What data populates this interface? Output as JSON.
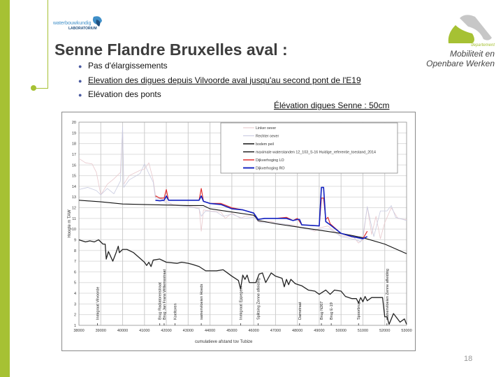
{
  "header": {
    "logo_left_text": "waterbouwkundig",
    "logo_left_subtext": "LABORATORIUM",
    "logo_right_dept": "departement",
    "logo_right_line1": "Mobiliteit en",
    "logo_right_line2": "Openbare Werken"
  },
  "slide": {
    "title": "Senne Flandre Bruxelles aval :",
    "bullets": [
      {
        "text": "Pas d'élargissements",
        "underline": false
      },
      {
        "text": "Elevation des digues depuis Vilvoorde aval  jusqu'au second pont de l'E19",
        "underline": true
      },
      {
        "text": "Elévation des ponts",
        "underline": false
      }
    ],
    "subtitle": "Élévation digues Senne : 50cm",
    "page_number": "18"
  },
  "colors": {
    "accent_green": "#a6c133",
    "title": "#3d3d3d"
  },
  "chart_data": {
    "type": "line",
    "title": "",
    "xlabel": "cumulatieve  afstand tov Tubize",
    "ylabel": "Hoogte m TAW",
    "xlim": [
      38000,
      53000
    ],
    "ylim": [
      1,
      20
    ],
    "xticks": [
      38000,
      39000,
      40000,
      41000,
      42000,
      43000,
      44000,
      45000,
      46000,
      47000,
      48000,
      49000,
      50000,
      51000,
      52000,
      53000
    ],
    "yticks": [
      1,
      2,
      3,
      4,
      5,
      6,
      7,
      8,
      9,
      10,
      11,
      12,
      13,
      14,
      15,
      16,
      17,
      18,
      19,
      20
    ],
    "grid": true,
    "legend_placement": "top-right",
    "series": [
      {
        "name": "Linker oever",
        "color": "#e8c8cc",
        "points": [
          [
            38000,
            16.6
          ],
          [
            38300,
            16.2
          ],
          [
            38600,
            16.1
          ],
          [
            38800,
            15.3
          ],
          [
            39000,
            13.2
          ],
          [
            39300,
            14.2
          ],
          [
            39600,
            14.7
          ],
          [
            39900,
            15.3
          ],
          [
            40000,
            19.5
          ],
          [
            40050,
            14.2
          ],
          [
            40300,
            15.0
          ],
          [
            40800,
            15.5
          ],
          [
            41000,
            15.6
          ],
          [
            41200,
            16.2
          ],
          [
            41400,
            14.6
          ],
          [
            41500,
            13.2
          ],
          [
            41700,
            12.9
          ],
          [
            42000,
            12.6
          ],
          [
            42300,
            12.3
          ],
          [
            42800,
            12.2
          ],
          [
            43200,
            12.1
          ],
          [
            43500,
            12.0
          ],
          [
            43600,
            9.8
          ],
          [
            43700,
            11.8
          ],
          [
            44000,
            11.7
          ],
          [
            44500,
            11.6
          ],
          [
            44700,
            11.0
          ],
          [
            45000,
            11.5
          ],
          [
            45400,
            11.0
          ],
          [
            45600,
            11.2
          ],
          [
            46000,
            11.3
          ],
          [
            46200,
            10.7
          ],
          [
            46800,
            10.7
          ],
          [
            47200,
            10.5
          ],
          [
            47800,
            10.4
          ],
          [
            48100,
            10.2
          ],
          [
            48500,
            10.0
          ],
          [
            48800,
            9.8
          ],
          [
            49000,
            10.1
          ],
          [
            49400,
            10.3
          ],
          [
            49700,
            9.8
          ],
          [
            50000,
            9.4
          ],
          [
            50600,
            9.2
          ],
          [
            50800,
            8.7
          ],
          [
            51000,
            9.0
          ],
          [
            51200,
            12.1
          ],
          [
            51400,
            9.5
          ],
          [
            51600,
            11.2
          ],
          [
            51800,
            9.1
          ],
          [
            52000,
            10.6
          ],
          [
            52300,
            12.0
          ],
          [
            52600,
            11.0
          ],
          [
            52900,
            10.9
          ],
          [
            53000,
            10.9
          ]
        ]
      },
      {
        "name": "Rechter oever",
        "color": "#c8cbe0",
        "points": [
          [
            38000,
            13.7
          ],
          [
            38400,
            13.9
          ],
          [
            38800,
            13.6
          ],
          [
            39000,
            13.2
          ],
          [
            39300,
            13.8
          ],
          [
            39600,
            13.3
          ],
          [
            39900,
            14.5
          ],
          [
            40000,
            19.6
          ],
          [
            40050,
            13.9
          ],
          [
            40300,
            14.6
          ],
          [
            40800,
            15.2
          ],
          [
            41000,
            16.1
          ],
          [
            41200,
            15.2
          ],
          [
            41400,
            14.4
          ],
          [
            41500,
            12.9
          ],
          [
            41800,
            12.8
          ],
          [
            42000,
            12.4
          ],
          [
            42500,
            12.2
          ],
          [
            43000,
            12.1
          ],
          [
            43500,
            11.9
          ],
          [
            43600,
            11.2
          ],
          [
            43800,
            11.7
          ],
          [
            44300,
            11.6
          ],
          [
            44600,
            11.2
          ],
          [
            45000,
            11.4
          ],
          [
            45500,
            11.0
          ],
          [
            46000,
            11.1
          ],
          [
            46300,
            10.6
          ],
          [
            47000,
            10.6
          ],
          [
            47600,
            10.4
          ],
          [
            48200,
            10.1
          ],
          [
            48700,
            9.9
          ],
          [
            49000,
            10.0
          ],
          [
            49500,
            10.0
          ],
          [
            50000,
            9.3
          ],
          [
            50700,
            9.0
          ],
          [
            50900,
            8.8
          ],
          [
            51000,
            9.3
          ],
          [
            51200,
            12.1
          ],
          [
            51500,
            9.3
          ],
          [
            51800,
            11.7
          ],
          [
            52100,
            11.7
          ],
          [
            52300,
            12.2
          ],
          [
            52500,
            11.1
          ],
          [
            53000,
            10.8
          ]
        ]
      },
      {
        "name": "bodem peil",
        "color": "#222222",
        "points": [
          [
            38000,
            9.0
          ],
          [
            38300,
            8.8
          ],
          [
            38500,
            8.9
          ],
          [
            38700,
            8.8
          ],
          [
            38900,
            9.0
          ],
          [
            39100,
            8.6
          ],
          [
            39200,
            8.6
          ],
          [
            39250,
            7.2
          ],
          [
            39350,
            7.9
          ],
          [
            39550,
            7.0
          ],
          [
            39700,
            7.8
          ],
          [
            39800,
            8.4
          ],
          [
            39850,
            7.8
          ],
          [
            40000,
            8.1
          ],
          [
            40200,
            8.1
          ],
          [
            40500,
            7.8
          ],
          [
            41000,
            6.9
          ],
          [
            41100,
            6.6
          ],
          [
            41200,
            6.9
          ],
          [
            41300,
            6.5
          ],
          [
            41400,
            7.1
          ],
          [
            41700,
            7.2
          ],
          [
            42000,
            6.9
          ],
          [
            42500,
            6.8
          ],
          [
            42700,
            6.9
          ],
          [
            43000,
            6.8
          ],
          [
            43200,
            6.7
          ],
          [
            43500,
            6.5
          ],
          [
            43800,
            6.1
          ],
          [
            44000,
            6.1
          ],
          [
            44300,
            6.1
          ],
          [
            44600,
            6.2
          ],
          [
            44800,
            5.9
          ],
          [
            45000,
            5.6
          ],
          [
            45300,
            5.2
          ],
          [
            45400,
            4.4
          ],
          [
            45500,
            5.7
          ],
          [
            45600,
            5.3
          ],
          [
            45700,
            5.7
          ],
          [
            45800,
            5.0
          ],
          [
            46100,
            5.0
          ],
          [
            46250,
            5.8
          ],
          [
            46400,
            5.9
          ],
          [
            46550,
            5.0
          ],
          [
            46800,
            5.9
          ],
          [
            47000,
            5.6
          ],
          [
            47300,
            5.4
          ],
          [
            47400,
            4.6
          ],
          [
            47500,
            5.3
          ],
          [
            47600,
            4.8
          ],
          [
            47700,
            5.3
          ],
          [
            47900,
            4.9
          ],
          [
            48200,
            4.7
          ],
          [
            48500,
            4.3
          ],
          [
            48800,
            4.2
          ],
          [
            49000,
            3.9
          ],
          [
            49300,
            4.3
          ],
          [
            49500,
            3.9
          ],
          [
            49700,
            4.3
          ],
          [
            50000,
            4.2
          ],
          [
            50200,
            3.7
          ],
          [
            50500,
            3.5
          ],
          [
            50700,
            3.5
          ],
          [
            50800,
            3.1
          ],
          [
            50900,
            3.6
          ],
          [
            51000,
            3.2
          ],
          [
            51100,
            3.7
          ],
          [
            51200,
            3.3
          ],
          [
            51400,
            3.6
          ],
          [
            51700,
            3.6
          ],
          [
            51900,
            3.6
          ],
          [
            52000,
            1.8
          ],
          [
            52100,
            1.8
          ],
          [
            52200,
            1.1
          ],
          [
            52400,
            2.1
          ],
          [
            52700,
            1.3
          ],
          [
            52900,
            1.6
          ],
          [
            53000,
            1.1
          ]
        ]
      },
      {
        "name": "maximale waterstanden 12_103_S-16 Huidige_referentie_toestand_2014",
        "color": "#111111",
        "points": [
          [
            38000,
            12.7
          ],
          [
            39000,
            12.55
          ],
          [
            40000,
            12.35
          ],
          [
            41000,
            12.3
          ],
          [
            42000,
            12.25
          ],
          [
            43000,
            12.2
          ],
          [
            43700,
            12.2
          ],
          [
            44000,
            11.9
          ],
          [
            45000,
            11.6
          ],
          [
            46000,
            11.3
          ],
          [
            46100,
            11.1
          ],
          [
            46200,
            10.8
          ],
          [
            46500,
            10.7
          ],
          [
            47000,
            10.5
          ],
          [
            48000,
            10.2
          ],
          [
            49000,
            9.9
          ],
          [
            50000,
            9.6
          ],
          [
            51000,
            9.2
          ],
          [
            52000,
            8.6
          ],
          [
            53000,
            7.7
          ]
        ]
      },
      {
        "name": "Dijkverhoging  LO",
        "color": "#e03030",
        "points": [
          [
            41500,
            13.1
          ],
          [
            41700,
            12.9
          ],
          [
            41900,
            12.9
          ],
          [
            42000,
            13.7
          ],
          [
            42100,
            12.7
          ],
          [
            43500,
            12.7
          ],
          [
            43600,
            13.8
          ],
          [
            43700,
            12.6
          ],
          [
            44000,
            12.4
          ],
          [
            44500,
            12.4
          ],
          [
            45000,
            12.0
          ],
          [
            45500,
            11.8
          ],
          [
            46000,
            11.5
          ],
          [
            46200,
            10.9
          ],
          [
            46500,
            11.0
          ],
          [
            47000,
            11.0
          ],
          [
            47500,
            11.1
          ],
          [
            47800,
            10.8
          ],
          [
            48000,
            11.0
          ],
          [
            48200,
            10.4
          ],
          [
            49000,
            10.3
          ],
          [
            49100,
            12.9
          ],
          [
            49200,
            12.9
          ],
          [
            49300,
            10.9
          ],
          [
            49400,
            11.1
          ],
          [
            49500,
            10.5
          ],
          [
            50000,
            9.6
          ],
          [
            50500,
            9.3
          ],
          [
            51000,
            9.1
          ],
          [
            51200,
            9.8
          ]
        ]
      },
      {
        "name": "Dijkverhoging  RO",
        "color": "#1020c0",
        "points": [
          [
            41500,
            12.7
          ],
          [
            41700,
            12.65
          ],
          [
            41900,
            12.7
          ],
          [
            42000,
            13.1
          ],
          [
            42100,
            12.7
          ],
          [
            43500,
            12.7
          ],
          [
            43600,
            13.1
          ],
          [
            43700,
            12.6
          ],
          [
            44000,
            12.4
          ],
          [
            44500,
            12.3
          ],
          [
            45000,
            11.9
          ],
          [
            45500,
            11.8
          ],
          [
            46000,
            11.5
          ],
          [
            46200,
            10.9
          ],
          [
            46500,
            11.0
          ],
          [
            47000,
            11.0
          ],
          [
            47500,
            11.0
          ],
          [
            47800,
            10.8
          ],
          [
            48000,
            10.9
          ],
          [
            48100,
            10.9
          ],
          [
            48200,
            10.4
          ],
          [
            49000,
            10.3
          ],
          [
            49100,
            13.9
          ],
          [
            49200,
            13.9
          ],
          [
            49300,
            10.7
          ],
          [
            49500,
            10.4
          ],
          [
            50000,
            9.6
          ],
          [
            50500,
            9.3
          ],
          [
            51000,
            9.1
          ],
          [
            51200,
            9.3
          ]
        ]
      }
    ],
    "annotations": [
      {
        "x": 38850,
        "text": "Inmigraat  Vilvoorde"
      },
      {
        "x": 41700,
        "text": "Brug Radiatorenstraat"
      },
      {
        "x": 41900,
        "text": "Brug Jan Frans Willemsstraat"
      },
      {
        "x": 42400,
        "text": "Koeltoren"
      },
      {
        "x": 43600,
        "text": "samenvloeien  Hoeds"
      },
      {
        "x": 45400,
        "text": "Inmigraat  Eppegem"
      },
      {
        "x": 46200,
        "text": "Splitsing Zenne  afleiding"
      },
      {
        "x": 48100,
        "text": "Damstraat"
      },
      {
        "x": 49100,
        "text": "Brug N267"
      },
      {
        "x": 49550,
        "text": "Brug E-19"
      },
      {
        "x": 50800,
        "text": "Spoorbrug"
      },
      {
        "x": 52100,
        "text": "samenvloeien  Zenne  afleiding"
      }
    ]
  }
}
